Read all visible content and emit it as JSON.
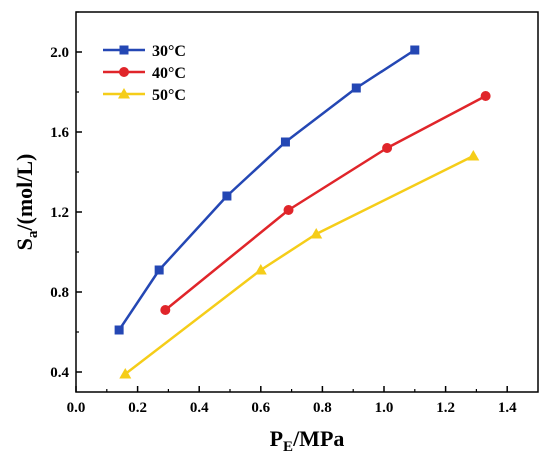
{
  "chart_data": {
    "type": "line",
    "xlabel": {
      "main": "P",
      "sub": "E",
      "rest": "/MPa"
    },
    "ylabel": {
      "main": "S",
      "sub": "a",
      "rest": "/(mol/L)"
    },
    "xlim": [
      0.0,
      1.5
    ],
    "ylim": [
      0.3,
      2.2
    ],
    "xticks": [
      0.0,
      0.2,
      0.4,
      0.6,
      0.8,
      1.0,
      1.2,
      1.4
    ],
    "xtick_labels": [
      "0.0",
      "0.2",
      "0.4",
      "0.6",
      "0.8",
      "1.0",
      "1.2",
      "1.4"
    ],
    "yticks": [
      0.4,
      0.8,
      1.2,
      1.6,
      2.0
    ],
    "ytick_labels": [
      "0.4",
      "0.8",
      "1.2",
      "1.6",
      "2.0"
    ],
    "grid": false,
    "legend_position": "top-left",
    "series": [
      {
        "name": "30°C",
        "color": "#2447b4",
        "marker": "square",
        "x": [
          0.14,
          0.27,
          0.49,
          0.68,
          0.91,
          1.1
        ],
        "y": [
          0.61,
          0.91,
          1.28,
          1.55,
          1.82,
          2.01
        ]
      },
      {
        "name": "40°C",
        "color": "#e0252a",
        "marker": "circle",
        "x": [
          0.29,
          0.69,
          1.01,
          1.33
        ],
        "y": [
          0.71,
          1.21,
          1.52,
          1.78
        ]
      },
      {
        "name": "50°C",
        "color": "#f5cd19",
        "marker": "triangle",
        "x": [
          0.16,
          0.6,
          0.78,
          1.29
        ],
        "y": [
          0.39,
          0.91,
          1.09,
          1.48
        ]
      }
    ]
  }
}
